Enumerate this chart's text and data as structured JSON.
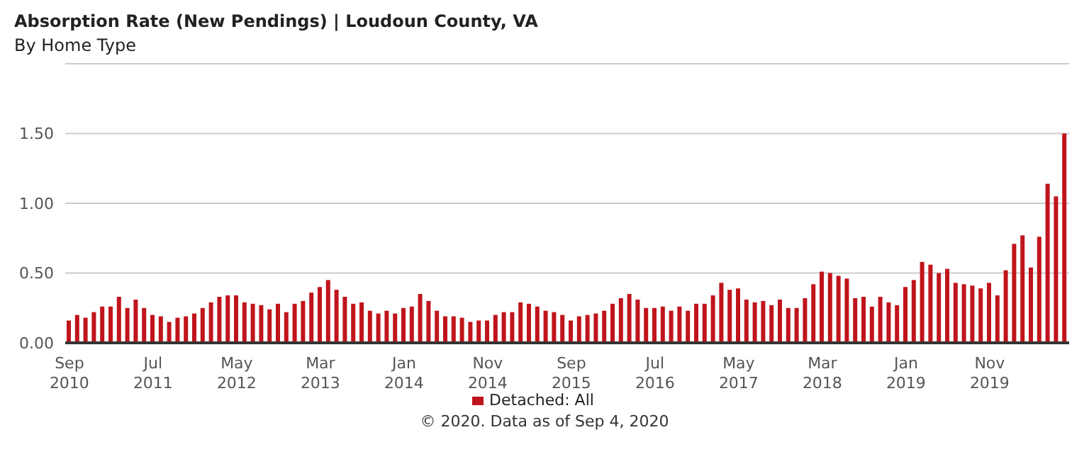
{
  "chart_data": {
    "type": "bar",
    "title": "Absorption Rate (New Pendings) | Loudoun County, VA",
    "subtitle": "By Home Type",
    "categories": [
      "Sep 2010",
      null,
      null,
      null,
      null,
      null,
      null,
      null,
      null,
      null,
      "Jul 2011",
      null,
      null,
      null,
      null,
      null,
      null,
      null,
      null,
      null,
      "May 2012",
      null,
      null,
      null,
      null,
      null,
      null,
      null,
      null,
      null,
      "Mar 2013",
      null,
      null,
      null,
      null,
      null,
      null,
      null,
      null,
      null,
      "Jan 2014",
      null,
      null,
      null,
      null,
      null,
      null,
      null,
      null,
      null,
      "Nov 2014",
      null,
      null,
      null,
      null,
      null,
      null,
      null,
      null,
      null,
      "Sep 2015",
      null,
      null,
      null,
      null,
      null,
      null,
      null,
      null,
      null,
      "Jul 2016",
      null,
      null,
      null,
      null,
      null,
      null,
      null,
      null,
      null,
      "May 2017",
      null,
      null,
      null,
      null,
      null,
      null,
      null,
      null,
      null,
      "Mar 2018",
      null,
      null,
      null,
      null,
      null,
      null,
      null,
      null,
      null,
      "Jan 2019",
      null,
      null,
      null,
      null,
      null,
      null,
      null,
      null,
      null,
      "Nov 2019",
      null,
      null,
      null,
      null,
      null,
      null,
      null,
      null,
      null
    ],
    "series": [
      {
        "name": "Detached: All",
        "color": "#c0141c",
        "values": [
          0.16,
          0.2,
          0.18,
          0.22,
          0.26,
          0.26,
          0.33,
          0.25,
          0.31,
          0.25,
          0.2,
          0.19,
          0.15,
          0.18,
          0.19,
          0.21,
          0.25,
          0.29,
          0.33,
          0.34,
          0.34,
          0.29,
          0.28,
          0.27,
          0.24,
          0.28,
          0.22,
          0.28,
          0.3,
          0.36,
          0.4,
          0.45,
          0.38,
          0.33,
          0.28,
          0.29,
          0.23,
          0.21,
          0.23,
          0.21,
          0.25,
          0.26,
          0.35,
          0.3,
          0.23,
          0.19,
          0.19,
          0.18,
          0.15,
          0.16,
          0.16,
          0.2,
          0.22,
          0.22,
          0.29,
          0.28,
          0.26,
          0.23,
          0.22,
          0.2,
          0.16,
          0.19,
          0.2,
          0.21,
          0.23,
          0.28,
          0.32,
          0.35,
          0.31,
          0.25,
          0.25,
          0.26,
          0.23,
          0.26,
          0.23,
          0.28,
          0.28,
          0.34,
          0.43,
          0.38,
          0.39,
          0.31,
          0.29,
          0.3,
          0.27,
          0.31,
          0.25,
          0.25,
          0.32,
          0.42,
          0.51,
          0.5,
          0.48,
          0.46,
          0.32,
          0.33,
          0.26,
          0.33,
          0.29,
          0.27,
          0.4,
          0.45,
          0.58,
          0.56,
          0.5,
          0.53,
          0.43,
          0.42,
          0.41,
          0.39,
          0.43,
          0.34,
          0.52,
          0.71,
          0.77,
          0.54,
          0.76,
          1.14,
          1.05,
          1.5
        ]
      }
    ],
    "ylim": [
      0,
      2
    ],
    "yticks": [
      {
        "value": 0,
        "label": "0.00"
      },
      {
        "value": 0.5,
        "label": "0.50"
      },
      {
        "value": 1,
        "label": "1.00"
      },
      {
        "value": 1.5,
        "label": "1.50"
      }
    ],
    "grid": "y",
    "legend": "bottom",
    "annotations": [
      "© 2020. Data as of Sep 4, 2020"
    ]
  }
}
